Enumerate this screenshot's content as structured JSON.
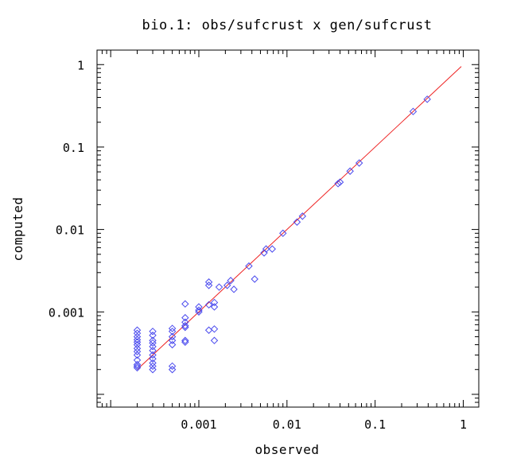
{
  "chart_data": {
    "type": "scatter",
    "title": "bio.1: obs/sufcrust x gen/sufcrust",
    "xlabel": "observed",
    "ylabel": "computed",
    "xscale": "log",
    "yscale": "log",
    "xlim": [
      7e-05,
      1.5
    ],
    "ylim": [
      7e-05,
      1.5
    ],
    "x_ticks": [
      {
        "value": 0.001,
        "label": "0.001"
      },
      {
        "value": 0.01,
        "label": "0.01"
      },
      {
        "value": 0.1,
        "label": "0.1"
      },
      {
        "value": 1,
        "label": "1"
      }
    ],
    "y_ticks": [
      {
        "value": 0.001,
        "label": "0.001"
      },
      {
        "value": 0.01,
        "label": "0.01"
      },
      {
        "value": 0.1,
        "label": "0.1"
      },
      {
        "value": 1,
        "label": "1"
      }
    ],
    "grid": false,
    "marker": "diamond",
    "colors": {
      "points": "#4a4aee",
      "fit_line": "#ee2020",
      "frame": "#000000"
    },
    "fit_line": {
      "x": [
        0.0002,
        0.95
      ],
      "y": [
        0.0002,
        0.95
      ]
    },
    "points": [
      {
        "x": 0.0002,
        "y": 0.00021
      },
      {
        "x": 0.0002,
        "y": 0.00022
      },
      {
        "x": 0.0002,
        "y": 0.00023
      },
      {
        "x": 0.0002,
        "y": 0.00026
      },
      {
        "x": 0.0002,
        "y": 0.0003
      },
      {
        "x": 0.0002,
        "y": 0.00033
      },
      {
        "x": 0.0002,
        "y": 0.00036
      },
      {
        "x": 0.0002,
        "y": 0.0004
      },
      {
        "x": 0.0002,
        "y": 0.00043
      },
      {
        "x": 0.0002,
        "y": 0.00046
      },
      {
        "x": 0.0002,
        "y": 0.0005
      },
      {
        "x": 0.0002,
        "y": 0.00055
      },
      {
        "x": 0.0002,
        "y": 0.0006
      },
      {
        "x": 0.0003,
        "y": 0.0002
      },
      {
        "x": 0.0003,
        "y": 0.00022
      },
      {
        "x": 0.0003,
        "y": 0.00024
      },
      {
        "x": 0.0003,
        "y": 0.00027
      },
      {
        "x": 0.0003,
        "y": 0.0003
      },
      {
        "x": 0.0003,
        "y": 0.00034
      },
      {
        "x": 0.0003,
        "y": 0.00038
      },
      {
        "x": 0.0003,
        "y": 0.00042
      },
      {
        "x": 0.0003,
        "y": 0.00045
      },
      {
        "x": 0.0003,
        "y": 0.00052
      },
      {
        "x": 0.0003,
        "y": 0.00058
      },
      {
        "x": 0.0005,
        "y": 0.0002
      },
      {
        "x": 0.0005,
        "y": 0.00022
      },
      {
        "x": 0.0005,
        "y": 0.0004
      },
      {
        "x": 0.0005,
        "y": 0.00045
      },
      {
        "x": 0.0005,
        "y": 0.0005
      },
      {
        "x": 0.0005,
        "y": 0.00058
      },
      {
        "x": 0.0005,
        "y": 0.00063
      },
      {
        "x": 0.0007,
        "y": 0.00043
      },
      {
        "x": 0.0007,
        "y": 0.00045
      },
      {
        "x": 0.0007,
        "y": 0.00065
      },
      {
        "x": 0.0007,
        "y": 0.00068
      },
      {
        "x": 0.0007,
        "y": 0.00075
      },
      {
        "x": 0.0007,
        "y": 0.00085
      },
      {
        "x": 0.0007,
        "y": 0.00125
      },
      {
        "x": 0.001,
        "y": 0.001
      },
      {
        "x": 0.001,
        "y": 0.00105
      },
      {
        "x": 0.001,
        "y": 0.00115
      },
      {
        "x": 0.0013,
        "y": 0.0006
      },
      {
        "x": 0.0013,
        "y": 0.00122
      },
      {
        "x": 0.0013,
        "y": 0.0021
      },
      {
        "x": 0.0013,
        "y": 0.0023
      },
      {
        "x": 0.0015,
        "y": 0.00045
      },
      {
        "x": 0.0015,
        "y": 0.00062
      },
      {
        "x": 0.0015,
        "y": 0.00115
      },
      {
        "x": 0.0015,
        "y": 0.0013
      },
      {
        "x": 0.0017,
        "y": 0.002
      },
      {
        "x": 0.0021,
        "y": 0.0021
      },
      {
        "x": 0.0023,
        "y": 0.0024
      },
      {
        "x": 0.0025,
        "y": 0.00188
      },
      {
        "x": 0.0037,
        "y": 0.0036
      },
      {
        "x": 0.0043,
        "y": 0.0025
      },
      {
        "x": 0.0055,
        "y": 0.0052
      },
      {
        "x": 0.0058,
        "y": 0.0058
      },
      {
        "x": 0.0068,
        "y": 0.0058
      },
      {
        "x": 0.009,
        "y": 0.009
      },
      {
        "x": 0.013,
        "y": 0.0123
      },
      {
        "x": 0.015,
        "y": 0.0145
      },
      {
        "x": 0.038,
        "y": 0.036
      },
      {
        "x": 0.04,
        "y": 0.0375
      },
      {
        "x": 0.052,
        "y": 0.051
      },
      {
        "x": 0.066,
        "y": 0.064
      },
      {
        "x": 0.27,
        "y": 0.27
      },
      {
        "x": 0.39,
        "y": 0.38
      }
    ]
  }
}
